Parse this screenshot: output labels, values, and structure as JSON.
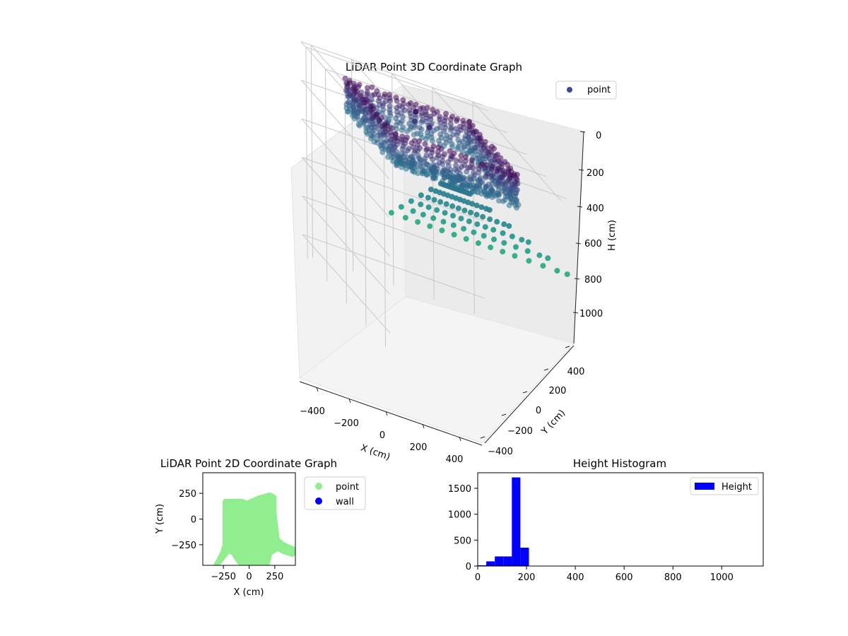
{
  "chart_data": [
    {
      "type": "scatter3d",
      "title": "LiDAR Point 3D Coordinate Graph",
      "xlabel": "X (cm)",
      "ylabel": "Y (cm)",
      "zlabel": "H (cm)",
      "xlim": [
        -450,
        450
      ],
      "ylim": [
        -450,
        450
      ],
      "zlim": [
        0,
        1100
      ],
      "z_inverted": true,
      "x_ticks": [
        "−400",
        "−200",
        "0",
        "200",
        "400"
      ],
      "y_ticks": [
        "−400",
        "−200",
        "0",
        "200",
        "400"
      ],
      "z_ticks": [
        "0",
        "200",
        "400",
        "600",
        "800",
        "1000"
      ],
      "grid": true,
      "colormap": "viridis",
      "legend": {
        "placement": "top-right",
        "entries": [
          {
            "name": "point",
            "color": "#3b4a8c"
          }
        ]
      },
      "series": [
        {
          "name": "point",
          "description_units": "cm",
          "ring_wall": {
            "x_range": [
              -300,
              300
            ],
            "y_range": [
              -200,
              280
            ],
            "h_range": [
              50,
              220
            ]
          },
          "rays": {
            "origin": [
              0,
              -150,
              200
            ],
            "ends_x": [
              -430,
              -360,
              -300,
              -240,
              -180,
              -120,
              -60,
              0,
              60,
              120,
              180,
              250,
              320,
              390,
              440
            ],
            "end_y": -430,
            "end_h": 380
          }
        }
      ]
    },
    {
      "type": "scatter",
      "title": "LiDAR Point 2D Coordinate Graph",
      "xlabel": "X (cm)",
      "ylabel": "Y (cm)",
      "xlim": [
        -450,
        450
      ],
      "ylim": [
        -450,
        450
      ],
      "x_ticks": [
        -250,
        0,
        250
      ],
      "y_ticks": [
        -250,
        0,
        250
      ],
      "x_tick_labels": [
        "−250",
        "0",
        "250"
      ],
      "y_tick_labels": [
        "−250",
        "0",
        "250"
      ],
      "legend": {
        "placement": "outside-right",
        "entries": [
          {
            "name": "point",
            "color": "#90ee90"
          },
          {
            "name": "wall",
            "color": "#0000ff"
          }
        ]
      },
      "series": [
        {
          "name": "point",
          "color": "#90ee90",
          "region_polygon": [
            [
              -230,
              170
            ],
            [
              -70,
              170
            ],
            [
              -20,
              150
            ],
            [
              90,
              200
            ],
            [
              200,
              230
            ],
            [
              240,
              210
            ],
            [
              240,
              50
            ],
            [
              270,
              -200
            ],
            [
              330,
              -250
            ],
            [
              440,
              -300
            ],
            [
              420,
              -340
            ],
            [
              330,
              -310
            ],
            [
              280,
              -280
            ],
            [
              200,
              -330
            ],
            [
              170,
              -450
            ],
            [
              -30,
              -450
            ],
            [
              -90,
              -420
            ],
            [
              -150,
              -330
            ],
            [
              -200,
              -300
            ],
            [
              -320,
              -450
            ],
            [
              -290,
              -400
            ],
            [
              -250,
              -320
            ],
            [
              -230,
              -250
            ]
          ]
        }
      ]
    },
    {
      "type": "histogram",
      "title": "Height Histogram",
      "xlabel": "",
      "ylabel": "",
      "xlim": [
        0,
        1170
      ],
      "ylim": [
        0,
        1800
      ],
      "x_ticks": [
        0,
        200,
        400,
        600,
        800,
        1000
      ],
      "y_ticks": [
        0,
        500,
        1000,
        1500
      ],
      "color": "#0000ff",
      "legend": {
        "placement": "top-right",
        "entries": [
          {
            "name": "Height",
            "color": "#0000ff"
          }
        ]
      },
      "bins": [
        {
          "x0": 0,
          "x1": 35,
          "count": 15
        },
        {
          "x0": 35,
          "x1": 70,
          "count": 90
        },
        {
          "x0": 70,
          "x1": 105,
          "count": 185
        },
        {
          "x0": 105,
          "x1": 140,
          "count": 185
        },
        {
          "x0": 140,
          "x1": 175,
          "count": 1710
        },
        {
          "x0": 175,
          "x1": 210,
          "count": 355
        },
        {
          "x0": 210,
          "x1": 1170,
          "count": 0
        }
      ]
    }
  ]
}
